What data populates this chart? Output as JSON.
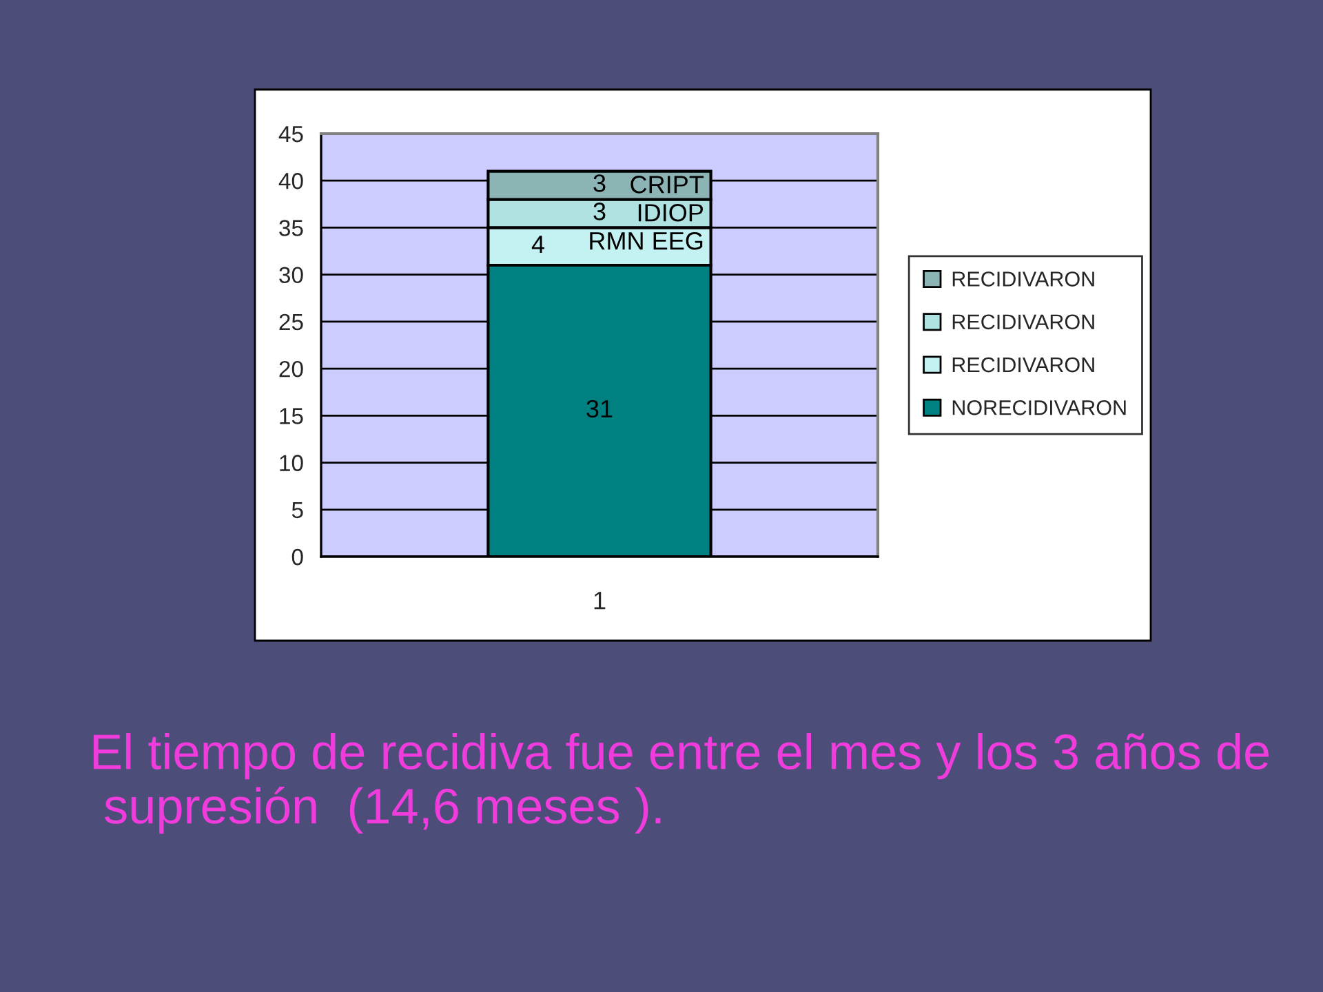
{
  "chart_data": {
    "type": "bar",
    "stacked": true,
    "categories": [
      "1"
    ],
    "series": [
      {
        "name": "NORECIDIVARON",
        "color": "#008080",
        "values": [
          31
        ]
      },
      {
        "name": "RECIDIVARON",
        "color": "#c4f2f2",
        "values": [
          4
        ]
      },
      {
        "name": "RECIDIVARON",
        "color": "#b0e2e2",
        "values": [
          3
        ]
      },
      {
        "name": "RECIDIVARON",
        "color": "#8cb4b4",
        "values": [
          3
        ]
      }
    ],
    "ylim": [
      0,
      45
    ],
    "yticks": [
      0,
      5,
      10,
      15,
      20,
      25,
      30,
      35,
      40,
      45
    ],
    "grid": "y",
    "legend": "right",
    "data_labels": true,
    "annotations": [
      {
        "text": "RMN EEG",
        "x": "1",
        "y": 35
      },
      {
        "text": "IDIOP",
        "x": "1",
        "y": 38
      },
      {
        "text": "CRIPT",
        "x": "1",
        "y": 41
      },
      "El tiempo de recidiva fue entre el mes y los 3 años de\n supresión  (14,6 meses )."
    ]
  }
}
